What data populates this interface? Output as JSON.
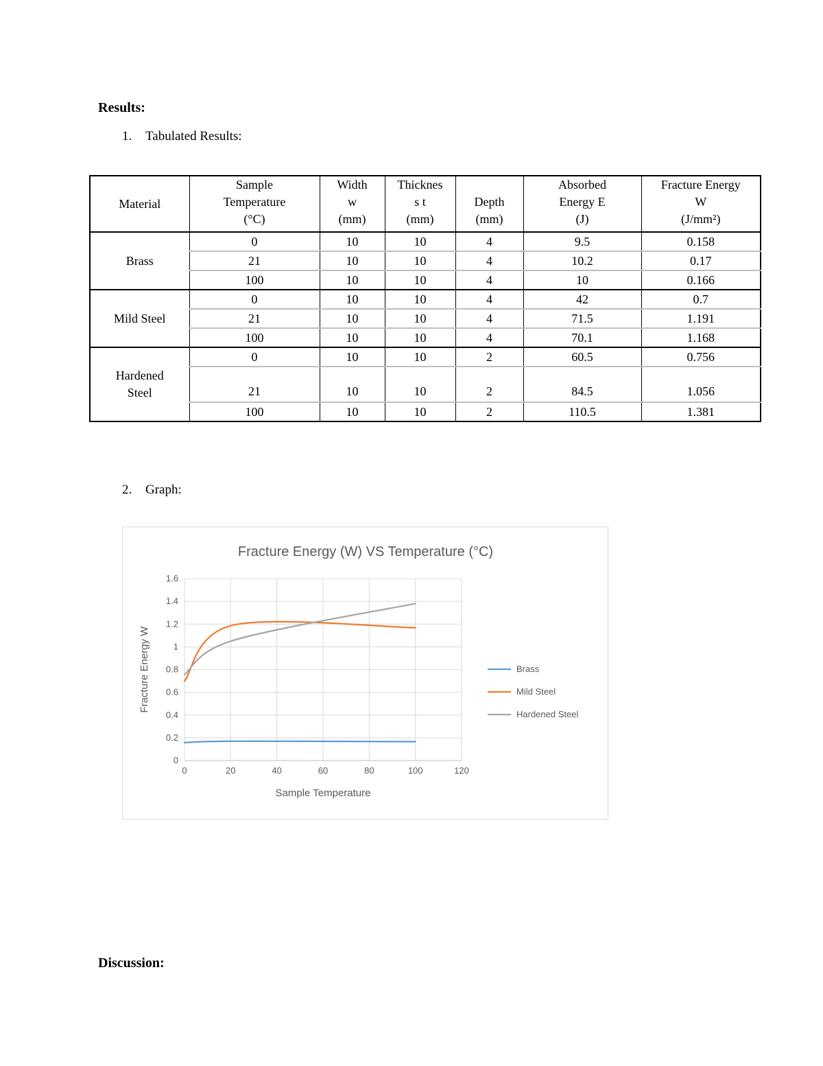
{
  "page": {
    "results_heading": "Results:",
    "list1_number": "1.",
    "list1_text": "Tabulated Results:",
    "list2_number": "2.",
    "list2_text": "Graph:",
    "discussion_heading": "Discussion:"
  },
  "table": {
    "headers": [
      {
        "id": "material",
        "lines": [
          "Material"
        ]
      },
      {
        "id": "sample-temperature",
        "lines": [
          "Sample",
          "Temperature",
          "(°C)"
        ]
      },
      {
        "id": "width",
        "lines": [
          "Width",
          "w",
          "(mm)"
        ]
      },
      {
        "id": "thickness",
        "lines": [
          "Thicknes",
          "s t",
          "(mm)"
        ]
      },
      {
        "id": "depth",
        "lines": [
          "Depth",
          "(mm)"
        ]
      },
      {
        "id": "absorbed-energy",
        "lines": [
          "Absorbed",
          "Energy E",
          "(J)"
        ]
      },
      {
        "id": "fracture-energy",
        "lines": [
          "Fracture Energy",
          "W",
          "(J/mm²)"
        ]
      }
    ],
    "groups": [
      {
        "material": "Brass",
        "rows": [
          [
            "0",
            "10",
            "10",
            "4",
            "9.5",
            "0.158"
          ],
          [
            "21",
            "10",
            "10",
            "4",
            "10.2",
            "0.17"
          ],
          [
            "100",
            "10",
            "10",
            "4",
            "10",
            "0.166"
          ]
        ]
      },
      {
        "material": "Mild Steel",
        "rows": [
          [
            "0",
            "10",
            "10",
            "4",
            "42",
            "0.7"
          ],
          [
            "21",
            "10",
            "10",
            "4",
            "71.5",
            "1.191"
          ],
          [
            "100",
            "10",
            "10",
            "4",
            "70.1",
            "1.168"
          ]
        ]
      },
      {
        "material": "Hardened Steel",
        "rows": [
          [
            "0",
            "10",
            "10",
            "2",
            "60.5",
            "0.756"
          ],
          [
            "21",
            "10",
            "10",
            "2",
            "84.5",
            "1.056"
          ],
          [
            "100",
            "10",
            "10",
            "2",
            "110.5",
            "1.381"
          ]
        ]
      }
    ]
  },
  "chart_data": {
    "type": "line",
    "title": "Fracture Energy (W) VS Temperature (°C)",
    "xlabel": "Sample Temperature",
    "ylabel": "Fracture Energy W",
    "x": [
      0,
      21,
      100
    ],
    "series": [
      {
        "name": "Brass",
        "color": "#5B9BD5",
        "values": [
          0.158,
          0.17,
          0.166
        ]
      },
      {
        "name": "Mild Steel",
        "color": "#ED7D31",
        "values": [
          0.7,
          1.191,
          1.168
        ]
      },
      {
        "name": "Hardened Steel",
        "color": "#A5A5A5",
        "values": [
          0.756,
          1.056,
          1.381
        ]
      }
    ],
    "xlim": [
      0,
      120
    ],
    "ylim": [
      0,
      1.6
    ],
    "x_ticks": [
      0,
      20,
      40,
      60,
      80,
      100,
      120
    ],
    "y_ticks": [
      0,
      0.2,
      0.4,
      0.6,
      0.8,
      1,
      1.2,
      1.4,
      1.6
    ],
    "grid": true,
    "legend_position": "right",
    "text_color": "#595959",
    "grid_color": "#D9D9D9",
    "axis_color": "#BFBFBF"
  }
}
